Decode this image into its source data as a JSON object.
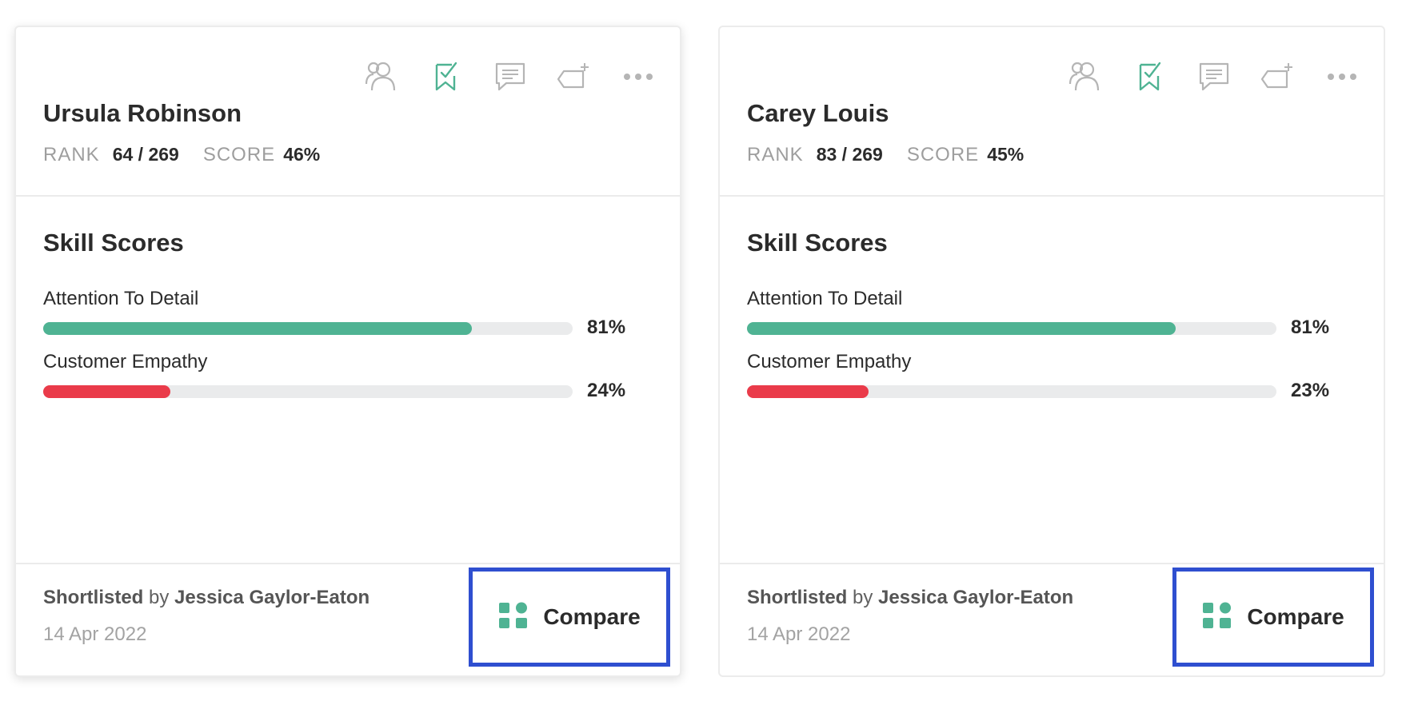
{
  "colors": {
    "accent_green": "#4fb393",
    "bar_green": "#4fb393",
    "bar_red": "#ea3b4a",
    "track": "#eaebec",
    "highlight_blue": "#2f4fd0",
    "icon_gray": "#b5b5b5"
  },
  "cards": [
    {
      "name": "Ursula Robinson",
      "rank_label": "RANK",
      "rank_value": "64 / 269",
      "score_label": "SCORE",
      "score_value": "46%",
      "icons": [
        "users-icon",
        "bookmark-check-icon",
        "comment-icon",
        "tag-add-icon",
        "more-icon"
      ],
      "skills_title": "Skill Scores",
      "skills": [
        {
          "label": "Attention To Detail",
          "value": "81%",
          "fraction": 0.81,
          "color": "green"
        },
        {
          "label": "Customer Empathy",
          "value": "24%",
          "fraction": 0.24,
          "color": "red"
        }
      ],
      "shortlisted_label": "Shortlisted",
      "by_label": "by",
      "shortlisted_by": "Jessica Gaylor-Eaton",
      "date": "14 Apr 2022",
      "compare_label": "Compare"
    },
    {
      "name": "Carey Louis",
      "rank_label": "RANK",
      "rank_value": "83 / 269",
      "score_label": "SCORE",
      "score_value": "45%",
      "icons": [
        "users-icon",
        "bookmark-check-icon",
        "comment-icon",
        "tag-add-icon",
        "more-icon"
      ],
      "skills_title": "Skill Scores",
      "skills": [
        {
          "label": "Attention To Detail",
          "value": "81%",
          "fraction": 0.81,
          "color": "green"
        },
        {
          "label": "Customer Empathy",
          "value": "23%",
          "fraction": 0.23,
          "color": "red"
        }
      ],
      "shortlisted_label": "Shortlisted",
      "by_label": "by",
      "shortlisted_by": "Jessica Gaylor-Eaton",
      "date": "14 Apr 2022",
      "compare_label": "Compare"
    }
  ]
}
